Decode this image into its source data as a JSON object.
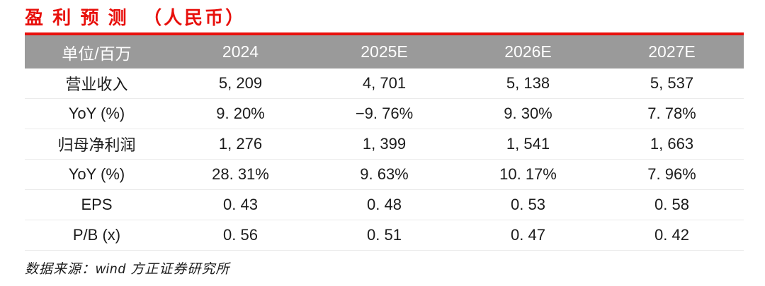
{
  "title": {
    "text": "盈 利 预 测  （人民币）"
  },
  "colors": {
    "accent_red": "#e8100c",
    "header_bg": "#9a9a9a",
    "header_text": "#ffffff",
    "body_text": "#1c1c1c",
    "row_divider": "#ebebeb"
  },
  "table": {
    "header": {
      "cells": [
        "单位/百万",
        "2024",
        "2025E",
        "2026E",
        "2027E"
      ]
    },
    "rows": [
      {
        "cells": [
          "营业收入",
          "5, 209",
          "4, 701",
          "5, 138",
          "5, 537"
        ]
      },
      {
        "cells": [
          "YoY (%)",
          "9. 20%",
          "−9. 76%",
          "9. 30%",
          "7. 78%"
        ]
      },
      {
        "cells": [
          "归母净利润",
          "1, 276",
          "1, 399",
          "1, 541",
          "1, 663"
        ]
      },
      {
        "cells": [
          "YoY (%)",
          "28. 31%",
          "9. 63%",
          "10. 17%",
          "7. 96%"
        ]
      },
      {
        "cells": [
          "EPS",
          "0. 43",
          "0. 48",
          "0. 53",
          "0. 58"
        ]
      },
      {
        "cells": [
          "P/B (x)",
          "0. 56",
          "0. 51",
          "0. 47",
          "0. 42"
        ]
      }
    ]
  },
  "footer": {
    "source": "数据来源：wind 方正证券研究所"
  },
  "chart_data": {
    "type": "table",
    "title": "盈利预测（人民币）",
    "unit_label": "单位/百万",
    "categories": [
      "2024",
      "2025E",
      "2026E",
      "2027E"
    ],
    "series": [
      {
        "name": "营业收入",
        "values": [
          5209,
          4701,
          5138,
          5537
        ]
      },
      {
        "name": "YoY (%)",
        "values": [
          9.2,
          -9.76,
          9.3,
          7.78
        ]
      },
      {
        "name": "归母净利润",
        "values": [
          1276,
          1399,
          1541,
          1663
        ]
      },
      {
        "name": "YoY (%)",
        "values": [
          28.31,
          9.63,
          10.17,
          7.96
        ]
      },
      {
        "name": "EPS",
        "values": [
          0.43,
          0.48,
          0.53,
          0.58
        ]
      },
      {
        "name": "P/B (x)",
        "values": [
          0.56,
          0.51,
          0.47,
          0.42
        ]
      }
    ],
    "source": "数据来源：wind 方正证券研究所"
  }
}
